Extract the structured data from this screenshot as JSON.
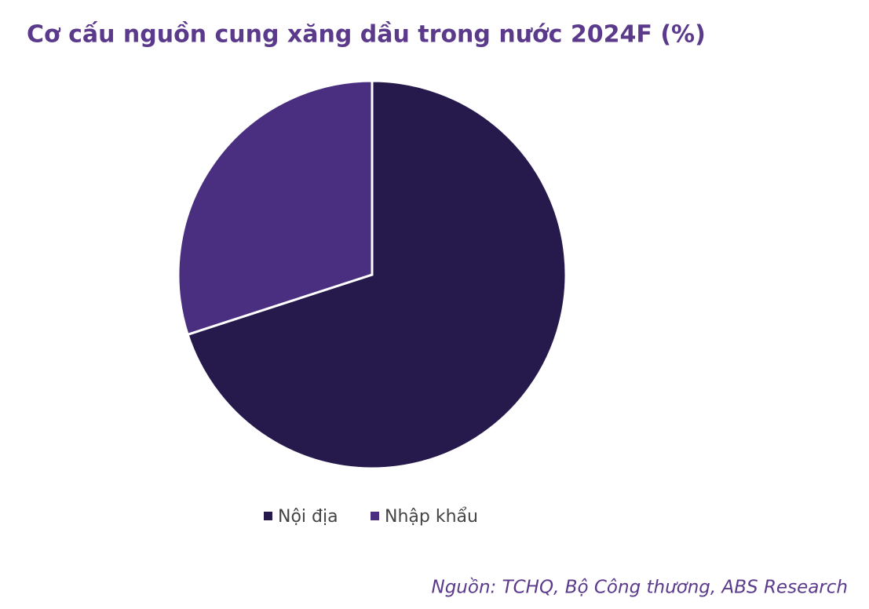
{
  "chart_data": {
    "type": "pie",
    "title": "Cơ cấu nguồn cung xăng dầu trong nước 2024F (%)",
    "categories": [
      "Nội địa",
      "Nhập khẩu"
    ],
    "values": [
      70,
      30
    ],
    "colors": [
      "#261a4d",
      "#4a2f80"
    ],
    "legend": "bottom",
    "source": "Nguồn: TCHQ, Bộ Công thương, ABS Research"
  }
}
